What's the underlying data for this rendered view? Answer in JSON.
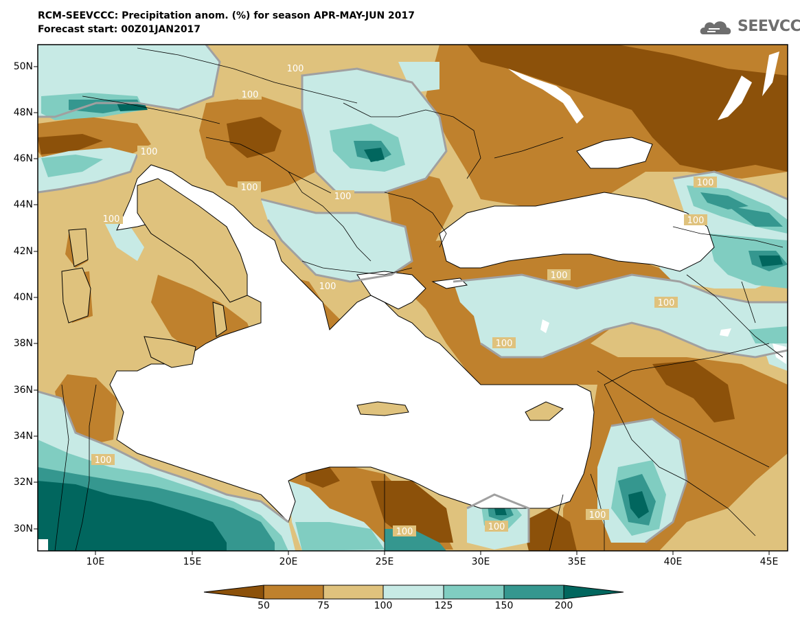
{
  "title": {
    "line1": "RCM-SEEVCCC: Precipitation anom. (%) for season APR-MAY-JUN 2017",
    "line2": "Forecast start: 00Z01JAN2017"
  },
  "logo": {
    "text": "SEEVCCC",
    "icon": "cloud-icon"
  },
  "axes": {
    "lat_labels": [
      "50N",
      "48N",
      "46N",
      "44N",
      "42N",
      "40N",
      "38N",
      "36N",
      "34N",
      "32N",
      "30N"
    ],
    "lon_labels": [
      "10E",
      "15E",
      "20E",
      "25E",
      "30E",
      "35E",
      "40E",
      "45E"
    ]
  },
  "map": {
    "region": "Eastern Mediterranean and Black Sea",
    "lon_range": [
      7,
      46
    ],
    "lat_range": [
      29,
      51
    ],
    "variable": "Precipitation anomaly (%)",
    "contour_label": "100",
    "contour_label_count": 16
  },
  "colorbar": {
    "ticks": [
      "50",
      "75",
      "100",
      "125",
      "150",
      "200"
    ],
    "classes": [
      {
        "range": "<50",
        "color": "#8c510a"
      },
      {
        "range": "50-75",
        "color": "#bf812d"
      },
      {
        "range": "75-100",
        "color": "#dfc27d"
      },
      {
        "range": "100-125",
        "color": "#c7eae5"
      },
      {
        "range": "125-150",
        "color": "#80cdc1"
      },
      {
        "range": "150-200",
        "color": "#35978f"
      },
      {
        "range": ">200",
        "color": "#01665e"
      }
    ]
  },
  "colors": {
    "sea": "#ffffff",
    "frame": "#000000",
    "contour": "#a0a0a0"
  }
}
